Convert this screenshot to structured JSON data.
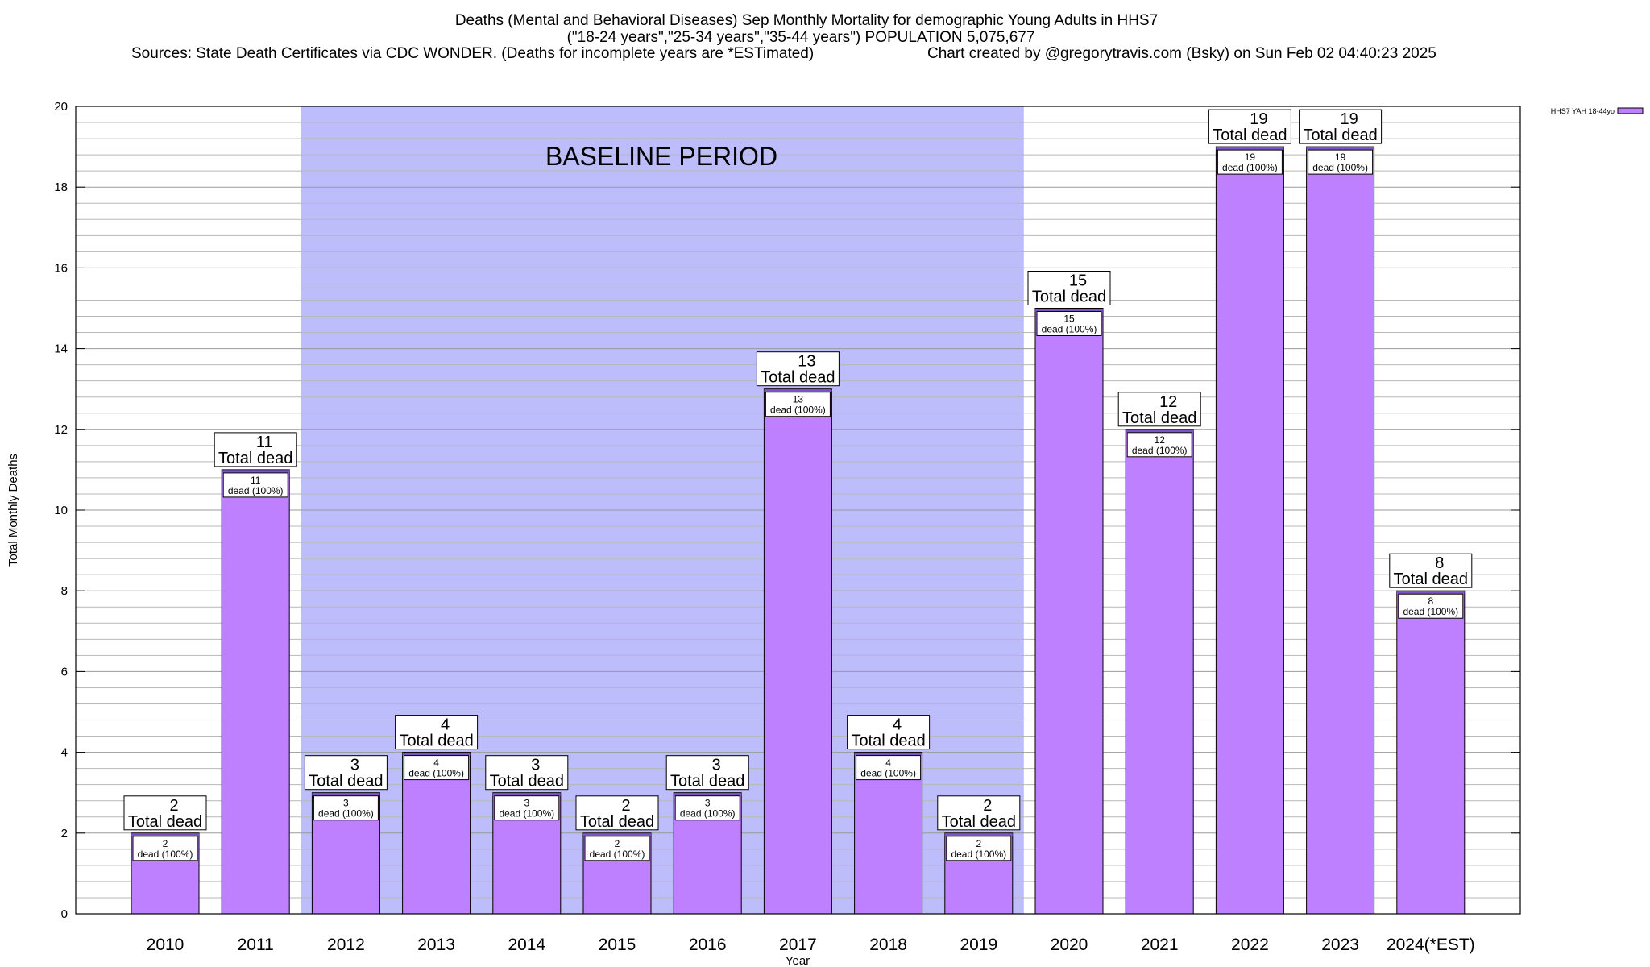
{
  "colors": {
    "bar_fill": "#bf80ff",
    "bar_top": "#7b52c7",
    "baseline_fill": "#bdbdfb",
    "grid": "#b8b8b8",
    "frame": "#000000"
  },
  "chart_data": {
    "type": "bar",
    "title": "Deaths (Mental and Behavioral Diseases) Sep Monthly Mortality for demographic Young Adults in HHS7",
    "subtitle": "(\"18-24 years\",\"25-34 years\",\"35-44 years\") POPULATION 5,075,677",
    "sources": "Sources: State Death Certificates via CDC WONDER. (Deaths for incomplete years are *ESTimated)",
    "credit": "Chart created by @gregorytravis.com (Bsky) on Sun Feb 02 04:40:23 2025",
    "xlabel": "Year",
    "ylabel": "Total Monthly Deaths",
    "ylim": [
      0,
      20
    ],
    "yticks": [
      0,
      2,
      4,
      6,
      8,
      10,
      12,
      14,
      16,
      18,
      20
    ],
    "ytick_labels": [
      "0",
      "2",
      "4",
      "6",
      "8",
      "10",
      "12",
      "14",
      "16",
      "18",
      "20"
    ],
    "minor_step": 0.4,
    "grid": true,
    "legend_position": "top-right",
    "categories": [
      "2010",
      "2011",
      "2012",
      "2013",
      "2014",
      "2015",
      "2016",
      "2017",
      "2018",
      "2019",
      "2020",
      "2021",
      "2022",
      "2023",
      "2024(*EST)"
    ],
    "series": [
      {
        "name": "HHS7 YAH 18-44yo",
        "values": [
          2,
          11,
          3,
          4,
          3,
          2,
          3,
          13,
          4,
          2,
          15,
          12,
          19,
          19,
          8
        ]
      }
    ],
    "value_labels": [
      "2",
      "11",
      "3",
      "4",
      "3",
      "2",
      "3",
      "13",
      "4",
      "2",
      "15",
      "12",
      "19",
      "19",
      "8"
    ],
    "total_label": "Total dead",
    "inner_label": "dead (100%)",
    "baseline": {
      "label": "BASELINE PERIOD",
      "start": "2012",
      "end": "2019"
    }
  }
}
